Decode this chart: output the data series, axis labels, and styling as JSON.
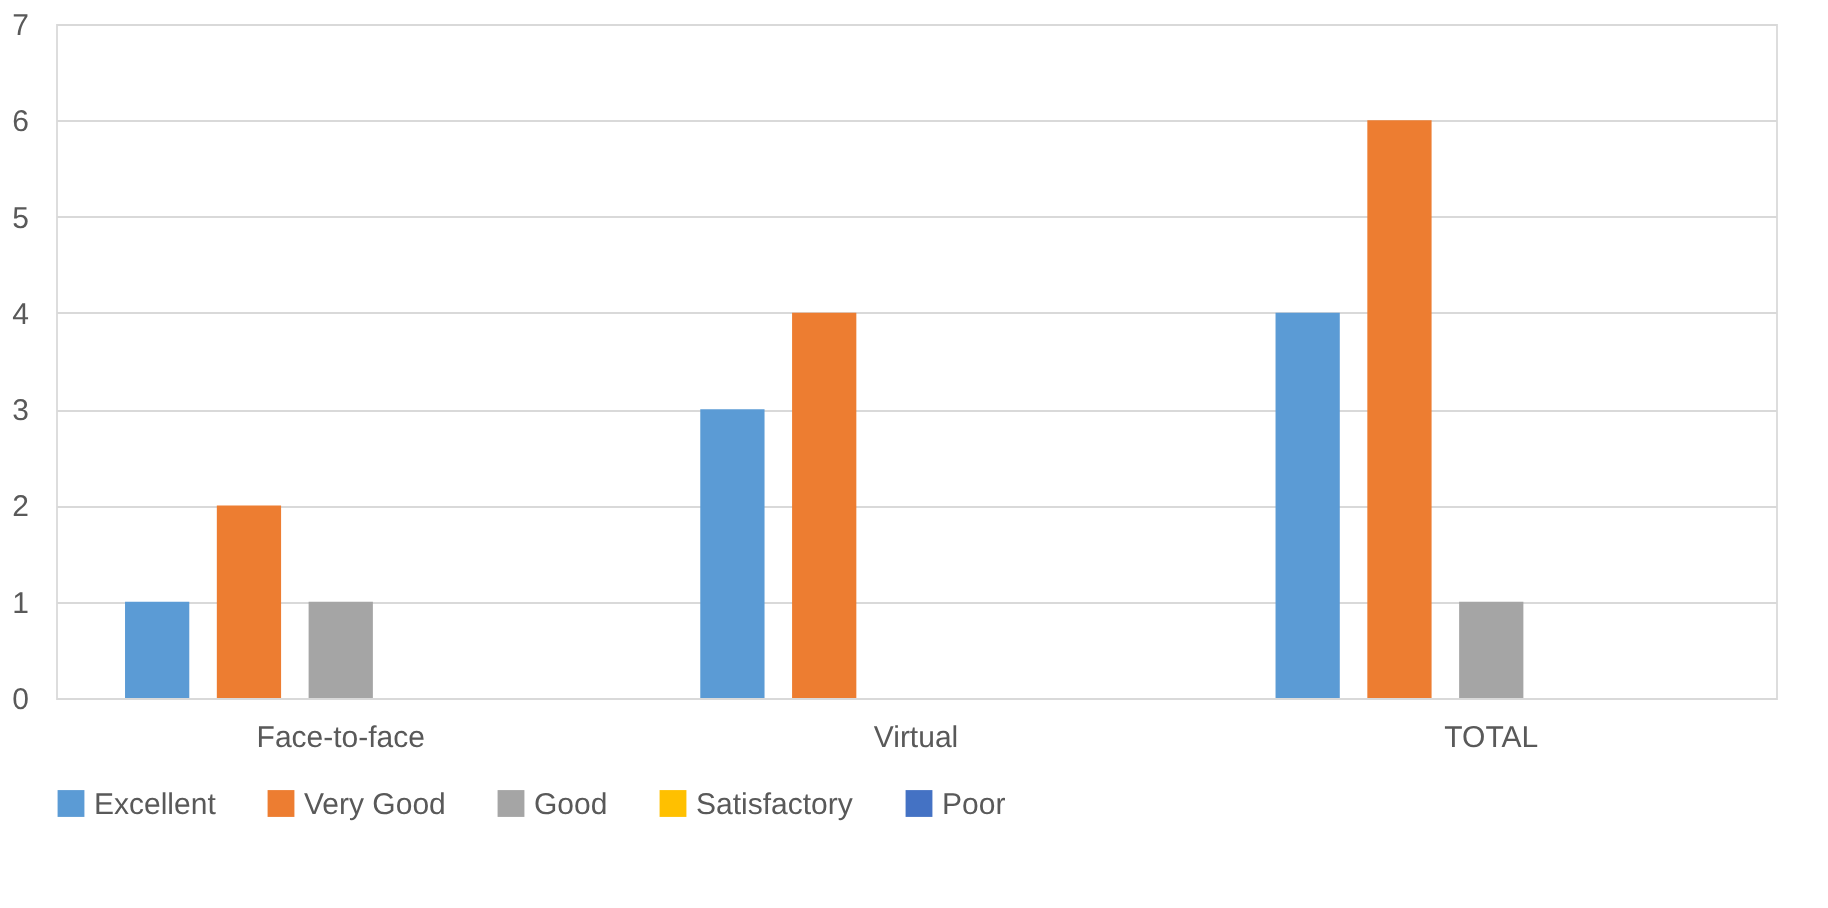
{
  "chart_data": {
    "type": "bar",
    "categories": [
      "Face-to-face",
      "Virtual",
      "TOTAL"
    ],
    "series": [
      {
        "name": "Excellent",
        "color": "#5b9bd5",
        "values": [
          1,
          3,
          4
        ]
      },
      {
        "name": "Very Good",
        "color": "#ed7d31",
        "values": [
          2,
          4,
          6
        ]
      },
      {
        "name": "Good",
        "color": "#a5a5a5",
        "values": [
          1,
          0,
          1
        ]
      },
      {
        "name": "Satisfactory",
        "color": "#ffc000",
        "values": [
          0,
          0,
          0
        ]
      },
      {
        "name": "Poor",
        "color": "#4472c4",
        "values": [
          0,
          0,
          0
        ]
      }
    ],
    "ylim": [
      0,
      7
    ],
    "yticks": [
      0,
      1,
      2,
      3,
      4,
      5,
      6,
      7
    ],
    "grid": "y",
    "legend": "bottom"
  }
}
